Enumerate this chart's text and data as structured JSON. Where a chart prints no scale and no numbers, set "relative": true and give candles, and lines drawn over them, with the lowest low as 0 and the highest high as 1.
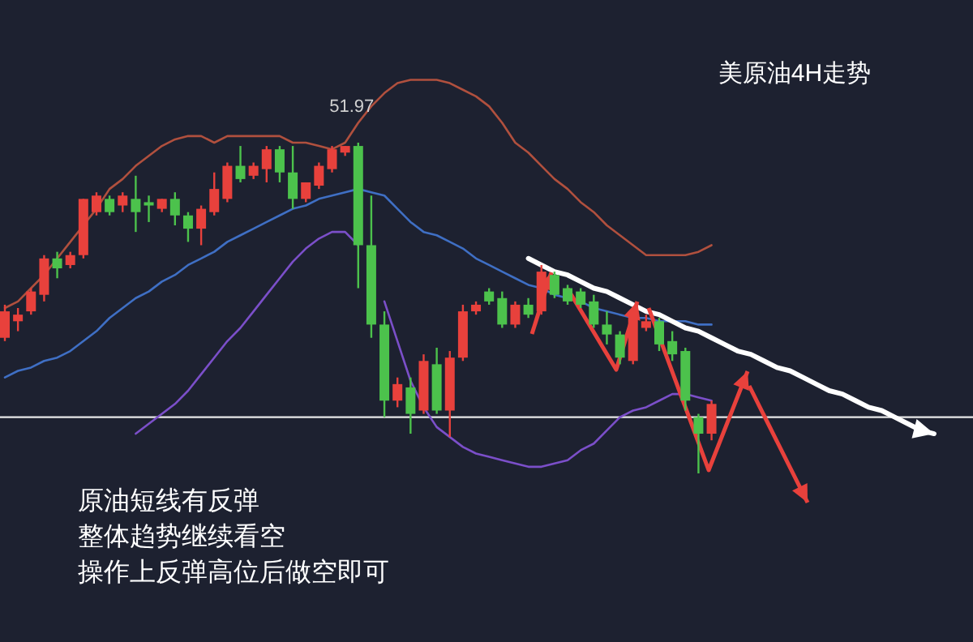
{
  "chart_data": {
    "type": "candlestick",
    "relative": true,
    "title": "美原油4H走势",
    "categories": [
      null,
      null,
      null,
      null,
      null,
      null,
      null,
      null,
      null,
      null,
      null,
      null,
      null,
      null,
      null,
      null,
      null,
      null,
      null,
      null,
      null,
      null,
      null,
      null,
      null,
      null,
      null,
      null,
      null,
      null,
      null,
      null,
      null,
      null,
      null,
      null,
      null,
      null,
      null,
      null,
      null,
      null,
      null,
      null,
      null,
      null,
      null,
      null,
      null,
      null,
      null,
      null,
      null,
      null,
      null,
      null,
      null,
      null,
      null,
      null,
      null,
      null,
      null,
      null,
      null,
      null,
      null,
      null,
      null,
      null,
      null,
      null
    ],
    "ohlc": [
      [
        0.41,
        0.51,
        0.4,
        0.49
      ],
      [
        0.46,
        0.5,
        0.43,
        0.48
      ],
      [
        0.49,
        0.56,
        0.48,
        0.55
      ],
      [
        0.54,
        0.66,
        0.52,
        0.65
      ],
      [
        0.65,
        0.67,
        0.59,
        0.62
      ],
      [
        0.63,
        0.67,
        0.62,
        0.66
      ],
      [
        0.66,
        0.83,
        0.65,
        0.83
      ],
      [
        0.79,
        0.85,
        0.78,
        0.84
      ],
      [
        0.83,
        0.84,
        0.78,
        0.79
      ],
      [
        0.81,
        0.85,
        0.79,
        0.84
      ],
      [
        0.83,
        0.9,
        0.73,
        0.79
      ],
      [
        0.82,
        0.84,
        0.76,
        0.81
      ],
      [
        0.8,
        0.83,
        0.79,
        0.83
      ],
      [
        0.83,
        0.85,
        0.75,
        0.78
      ],
      [
        0.78,
        0.79,
        0.7,
        0.74
      ],
      [
        0.74,
        0.81,
        0.69,
        0.8
      ],
      [
        0.79,
        0.91,
        0.78,
        0.86
      ],
      [
        0.83,
        0.94,
        0.82,
        0.93
      ],
      [
        0.93,
        0.99,
        0.88,
        0.89
      ],
      [
        0.9,
        0.94,
        0.89,
        0.93
      ],
      [
        0.92,
        0.99,
        0.88,
        0.98
      ],
      [
        0.98,
        0.99,
        0.88,
        0.91
      ],
      [
        0.91,
        0.99,
        0.8,
        0.83
      ],
      [
        0.83,
        0.88,
        0.82,
        0.88
      ],
      [
        0.87,
        0.94,
        0.86,
        0.93
      ],
      [
        0.92,
        0.99,
        0.91,
        0.98
      ],
      [
        0.97,
        0.99,
        0.96,
        0.99
      ],
      [
        0.99,
        1.0,
        0.56,
        0.69
      ],
      [
        0.69,
        0.84,
        0.41,
        0.45
      ],
      [
        0.45,
        0.49,
        0.17,
        0.22
      ],
      [
        0.22,
        0.29,
        0.2,
        0.27
      ],
      [
        0.26,
        0.29,
        0.12,
        0.18
      ],
      [
        0.19,
        0.36,
        0.18,
        0.34
      ],
      [
        0.33,
        0.38,
        0.18,
        0.19
      ],
      [
        0.19,
        0.37,
        0.11,
        0.35
      ],
      [
        0.35,
        0.51,
        0.34,
        0.49
      ],
      [
        0.49,
        0.52,
        0.48,
        0.51
      ],
      [
        0.55,
        0.56,
        0.51,
        0.52
      ],
      [
        0.53,
        0.55,
        0.44,
        0.45
      ],
      [
        0.45,
        0.52,
        0.44,
        0.51
      ],
      [
        0.51,
        0.53,
        0.47,
        0.48
      ],
      [
        0.49,
        0.63,
        0.48,
        0.61
      ],
      [
        0.6,
        0.61,
        0.53,
        0.54
      ],
      [
        0.56,
        0.57,
        0.51,
        0.52
      ],
      [
        0.55,
        0.56,
        0.5,
        0.51
      ],
      [
        0.52,
        0.54,
        0.44,
        0.45
      ],
      [
        0.45,
        0.49,
        0.39,
        0.42
      ],
      [
        0.42,
        0.43,
        0.33,
        0.35
      ],
      [
        0.34,
        0.5,
        0.33,
        0.49
      ],
      [
        0.44,
        0.48,
        0.43,
        0.46
      ],
      [
        0.46,
        0.47,
        0.37,
        0.39
      ],
      [
        0.4,
        0.43,
        0.34,
        0.36
      ],
      [
        0.37,
        0.38,
        0.19,
        0.22
      ],
      [
        0.17,
        0.18,
        0,
        0.12
      ],
      [
        0.12,
        0.22,
        0.1,
        0.21
      ],
      null,
      null,
      null,
      null,
      null,
      null,
      null,
      null,
      null,
      null,
      null,
      null,
      null,
      null,
      null,
      null,
      null
    ],
    "colors": [
      "#e8413c",
      "#e8413c",
      "#e8413c",
      "#e8413c",
      "#4cc24c",
      "#e8413c",
      "#e8413c",
      "#e8413c",
      "#4cc24c",
      "#e8413c",
      "#4cc24c",
      "#4cc24c",
      "#e8413c",
      "#4cc24c",
      "#4cc24c",
      "#e8413c",
      "#e8413c",
      "#e8413c",
      "#4cc24c",
      "#e8413c",
      "#e8413c",
      "#4cc24c",
      "#4cc24c",
      "#e8413c",
      "#e8413c",
      "#e8413c",
      "#e8413c",
      "#4cc24c",
      "#4cc24c",
      "#4cc24c",
      "#e8413c",
      "#4cc24c",
      "#e8413c",
      "#4cc24c",
      "#e8413c",
      "#e8413c",
      "#e8413c",
      "#4cc24c",
      "#4cc24c",
      "#e8413c",
      "#4cc24c",
      "#e8413c",
      "#4cc24c",
      "#4cc24c",
      "#4cc24c",
      "#4cc24c",
      "#4cc24c",
      "#4cc24c",
      "#e8413c",
      "#e8413c",
      "#4cc24c",
      "#4cc24c",
      "#4cc24c",
      "#4cc24c",
      "#e8413c",
      null,
      null,
      null,
      null,
      null,
      null,
      null,
      null,
      null,
      null,
      null,
      null,
      null,
      null,
      null,
      null,
      null
    ],
    "series": [
      {
        "type": "line",
        "color": "#b0503e",
        "values": [
          0.5,
          0.52,
          0.56,
          0.6,
          0.65,
          0.7,
          0.75,
          0.8,
          0.86,
          0.89,
          0.93,
          0.96,
          0.99,
          1.01,
          1.02,
          1.02,
          1.0,
          1.02,
          1.02,
          1.02,
          1.02,
          1.02,
          1.0,
          1.0,
          0.99,
          0.98,
          1.0,
          1.06,
          1.11,
          1.15,
          1.18,
          1.19,
          1.19,
          1.19,
          1.18,
          1.16,
          1.14,
          1.11,
          1.06,
          1.0,
          0.97,
          0.93,
          0.89,
          0.86,
          0.82,
          0.79,
          0.75,
          0.72,
          0.69,
          0.66,
          0.66,
          0.66,
          0.66,
          0.67,
          0.69,
          null,
          null,
          null,
          null,
          null,
          null,
          null,
          null,
          null,
          null,
          null,
          null,
          null,
          null,
          null,
          null,
          null
        ]
      },
      {
        "type": "line",
        "color": "#3f6fc4",
        "values": [
          0.29,
          0.31,
          0.32,
          0.34,
          0.35,
          0.37,
          0.4,
          0.43,
          0.47,
          0.5,
          0.53,
          0.55,
          0.58,
          0.6,
          0.63,
          0.65,
          0.67,
          0.7,
          0.72,
          0.74,
          0.76,
          0.78,
          0.8,
          0.81,
          0.83,
          0.84,
          0.85,
          0.86,
          0.85,
          0.84,
          0.8,
          0.76,
          0.73,
          0.72,
          0.7,
          0.68,
          0.65,
          0.63,
          0.61,
          0.59,
          0.57,
          0.56,
          0.54,
          0.53,
          0.52,
          0.5,
          0.49,
          0.48,
          0.47,
          0.47,
          0.46,
          0.46,
          0.46,
          0.45,
          0.45,
          null,
          null,
          null,
          null,
          null,
          null,
          null,
          null,
          null,
          null,
          null,
          null,
          null,
          null,
          null,
          null,
          null
        ]
      },
      {
        "type": "line",
        "color": "#7b4fc9",
        "values": [
          null,
          null,
          null,
          null,
          null,
          null,
          null,
          null,
          null,
          null,
          0.12,
          0.15,
          0.18,
          0.21,
          0.25,
          0.3,
          0.35,
          0.4,
          0.44,
          0.49,
          0.54,
          0.59,
          0.64,
          0.68,
          0.71,
          0.73,
          0.73,
          0.69,
          null,
          0.52,
          0.4,
          0.28,
          0.2,
          0.14,
          0.11,
          0.08,
          0.06,
          0.05,
          0.04,
          0.03,
          0.02,
          0.02,
          0.03,
          0.04,
          0.07,
          0.09,
          0.13,
          0.17,
          0.19,
          0.2,
          0.22,
          0.24,
          0.24,
          0.23,
          0.22,
          null,
          null,
          null,
          null,
          null,
          null,
          null,
          null,
          null,
          null,
          null,
          null,
          null,
          null,
          null,
          null,
          null
        ]
      },
      {
        "type": "line",
        "color": "#ffffff",
        "values": [
          null,
          null,
          null,
          null,
          null,
          null,
          null,
          null,
          null,
          null,
          null,
          null,
          null,
          null,
          null,
          null,
          null,
          null,
          null,
          null,
          null,
          null,
          null,
          null,
          null,
          null,
          null,
          null,
          null,
          null,
          null,
          null,
          null,
          null,
          null,
          null,
          null,
          null,
          null,
          null,
          0.65,
          0.63,
          0.61,
          0.6,
          0.58,
          0.56,
          0.55,
          0.53,
          0.51,
          0.49,
          0.48,
          0.46,
          0.44,
          0.43,
          0.41,
          0.39,
          0.37,
          0.36,
          0.34,
          0.32,
          0.31,
          0.29,
          0.27,
          0.25,
          0.24,
          0.22,
          0.2,
          0.19,
          0.17,
          0.15,
          0.13,
          0.12
        ]
      }
    ],
    "ref_lines": [
      {
        "axis": "y",
        "value": 0.17,
        "color": "#e8e8e8"
      }
    ],
    "annotations": [
      {
        "text": "51.97",
        "y": 1.0
      },
      "原油短线有反弹",
      "整体趋势继续看空",
      "操作上反弹高位后做空即可"
    ]
  }
}
